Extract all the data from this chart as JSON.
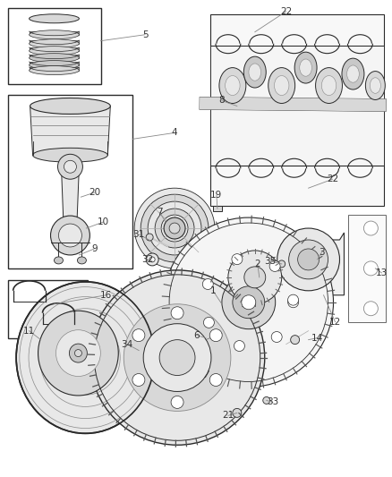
{
  "bg_color": "#ffffff",
  "line_color": "#2a2a2a",
  "gray1": "#c8c8c8",
  "gray2": "#d8d8d8",
  "gray3": "#e8e8e8",
  "gray4": "#f0f0f0",
  "fig_width": 4.38,
  "fig_height": 5.33,
  "dpi": 100,
  "label_fontsize": 7.5
}
